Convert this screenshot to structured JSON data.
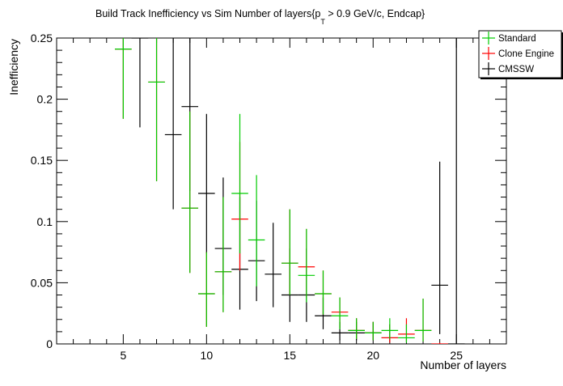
{
  "chart_data": {
    "type": "scatter",
    "title_main": "Build Track Inefficiency vs Sim Number of layers{p",
    "title_sub": "T",
    "title_rest": " > 0.9 GeV/c, Endcap}",
    "xlabel": "Number of layers",
    "ylabel": "Inefficiency",
    "xlim": [
      1,
      28
    ],
    "ylim": [
      0,
      0.25
    ],
    "xticks": [
      5,
      10,
      15,
      20,
      25
    ],
    "yticks": [
      0,
      0.05,
      0.1,
      0.15,
      0.2,
      0.25
    ],
    "ytick_labels": [
      "0",
      "0.05",
      "0.1",
      "0.15",
      "0.2",
      "0.25"
    ],
    "grid": false,
    "legend_position": "top-right",
    "colors": {
      "Standard": "#00cc00",
      "Clone Engine": "#ff0000",
      "CMSSW": "#000000"
    },
    "series": [
      {
        "name": "Standard",
        "points": [
          {
            "x": 5,
            "y": 0.241,
            "lo": 0.184,
            "hi": 0.25
          },
          {
            "x": 7,
            "y": 0.214,
            "lo": 0.133,
            "hi": 0.25
          },
          {
            "x": 9,
            "y": 0.111,
            "lo": 0.058,
            "hi": 0.19
          },
          {
            "x": 10,
            "y": 0.041,
            "lo": 0.014,
            "hi": 0.075
          },
          {
            "x": 11,
            "y": 0.059,
            "lo": 0.026,
            "hi": 0.12
          },
          {
            "x": 12,
            "y": 0.123,
            "lo": 0.074,
            "hi": 0.188
          },
          {
            "x": 13,
            "y": 0.085,
            "lo": 0.047,
            "hi": 0.138
          },
          {
            "x": 15,
            "y": 0.066,
            "lo": 0.04,
            "hi": 0.11
          },
          {
            "x": 16,
            "y": 0.056,
            "lo": 0.034,
            "hi": 0.094
          },
          {
            "x": 17,
            "y": 0.041,
            "lo": 0.024,
            "hi": 0.06
          },
          {
            "x": 18,
            "y": 0.023,
            "lo": 0.012,
            "hi": 0.038
          },
          {
            "x": 19,
            "y": 0.011,
            "lo": 0.004,
            "hi": 0.021
          },
          {
            "x": 20,
            "y": 0.009,
            "lo": 0.003,
            "hi": 0.018
          },
          {
            "x": 21,
            "y": 0.011,
            "lo": 0.004,
            "hi": 0.021
          },
          {
            "x": 22,
            "y": 0.005,
            "lo": 0.001,
            "hi": 0.016
          },
          {
            "x": 23,
            "y": 0.011,
            "lo": 0.002,
            "hi": 0.037
          }
        ]
      },
      {
        "name": "Clone Engine",
        "points": [
          {
            "x": 5,
            "y": 0.241,
            "lo": 0.184,
            "hi": 0.25
          },
          {
            "x": 7,
            "y": 0.214,
            "lo": 0.133,
            "hi": 0.25
          },
          {
            "x": 9,
            "y": 0.111,
            "lo": 0.058,
            "hi": 0.19
          },
          {
            "x": 10,
            "y": 0.041,
            "lo": 0.014,
            "hi": 0.075
          },
          {
            "x": 11,
            "y": 0.059,
            "lo": 0.026,
            "hi": 0.12
          },
          {
            "x": 12,
            "y": 0.102,
            "lo": 0.06,
            "hi": 0.165
          },
          {
            "x": 15,
            "y": 0.066,
            "lo": 0.04,
            "hi": 0.11
          },
          {
            "x": 16,
            "y": 0.063,
            "lo": 0.038,
            "hi": 0.094
          },
          {
            "x": 17,
            "y": 0.041,
            "lo": 0.024,
            "hi": 0.06
          },
          {
            "x": 18,
            "y": 0.026,
            "lo": 0.013,
            "hi": 0.038
          },
          {
            "x": 19,
            "y": 0.011,
            "lo": 0.004,
            "hi": 0.021
          },
          {
            "x": 20,
            "y": 0.009,
            "lo": 0.003,
            "hi": 0.018
          },
          {
            "x": 21,
            "y": 0.005,
            "lo": 0.001,
            "hi": 0.016
          },
          {
            "x": 22,
            "y": 0.008,
            "lo": 0.002,
            "hi": 0.021
          },
          {
            "x": 23,
            "y": 0.011,
            "lo": 0.002,
            "hi": 0.037
          },
          {
            "x": 24,
            "y": 0.0,
            "lo": 0.0,
            "hi": 0.001
          }
        ]
      },
      {
        "name": "CMSSW",
        "points": [
          {
            "x": 6,
            "y": 0.25,
            "lo": 0.177,
            "hi": 0.25
          },
          {
            "x": 8,
            "y": 0.171,
            "lo": 0.11,
            "hi": 0.25
          },
          {
            "x": 9,
            "y": 0.194,
            "lo": 0.125,
            "hi": 0.25
          },
          {
            "x": 10,
            "y": 0.123,
            "lo": 0.074,
            "hi": 0.188
          },
          {
            "x": 11,
            "y": 0.078,
            "lo": 0.04,
            "hi": 0.136
          },
          {
            "x": 12,
            "y": 0.061,
            "lo": 0.028,
            "hi": 0.12
          },
          {
            "x": 13,
            "y": 0.068,
            "lo": 0.035,
            "hi": 0.117
          },
          {
            "x": 14,
            "y": 0.057,
            "lo": 0.03,
            "hi": 0.099
          },
          {
            "x": 15,
            "y": 0.04,
            "lo": 0.018,
            "hi": 0.078
          },
          {
            "x": 16,
            "y": 0.04,
            "lo": 0.018,
            "hi": 0.078
          },
          {
            "x": 17,
            "y": 0.023,
            "lo": 0.012,
            "hi": 0.038
          },
          {
            "x": 18,
            "y": 0.009,
            "lo": 0.003,
            "hi": 0.018
          },
          {
            "x": 19,
            "y": 0.009,
            "lo": 0.003,
            "hi": 0.018
          },
          {
            "x": 20,
            "y": 0.009,
            "lo": 0.003,
            "hi": 0.018
          },
          {
            "x": 21,
            "y": 0.005,
            "lo": 0.001,
            "hi": 0.016
          },
          {
            "x": 24,
            "y": 0.048,
            "lo": 0.008,
            "hi": 0.149
          },
          {
            "x": 25,
            "y": 0.0,
            "lo": 0.0,
            "hi": 0.25
          }
        ]
      }
    ]
  }
}
